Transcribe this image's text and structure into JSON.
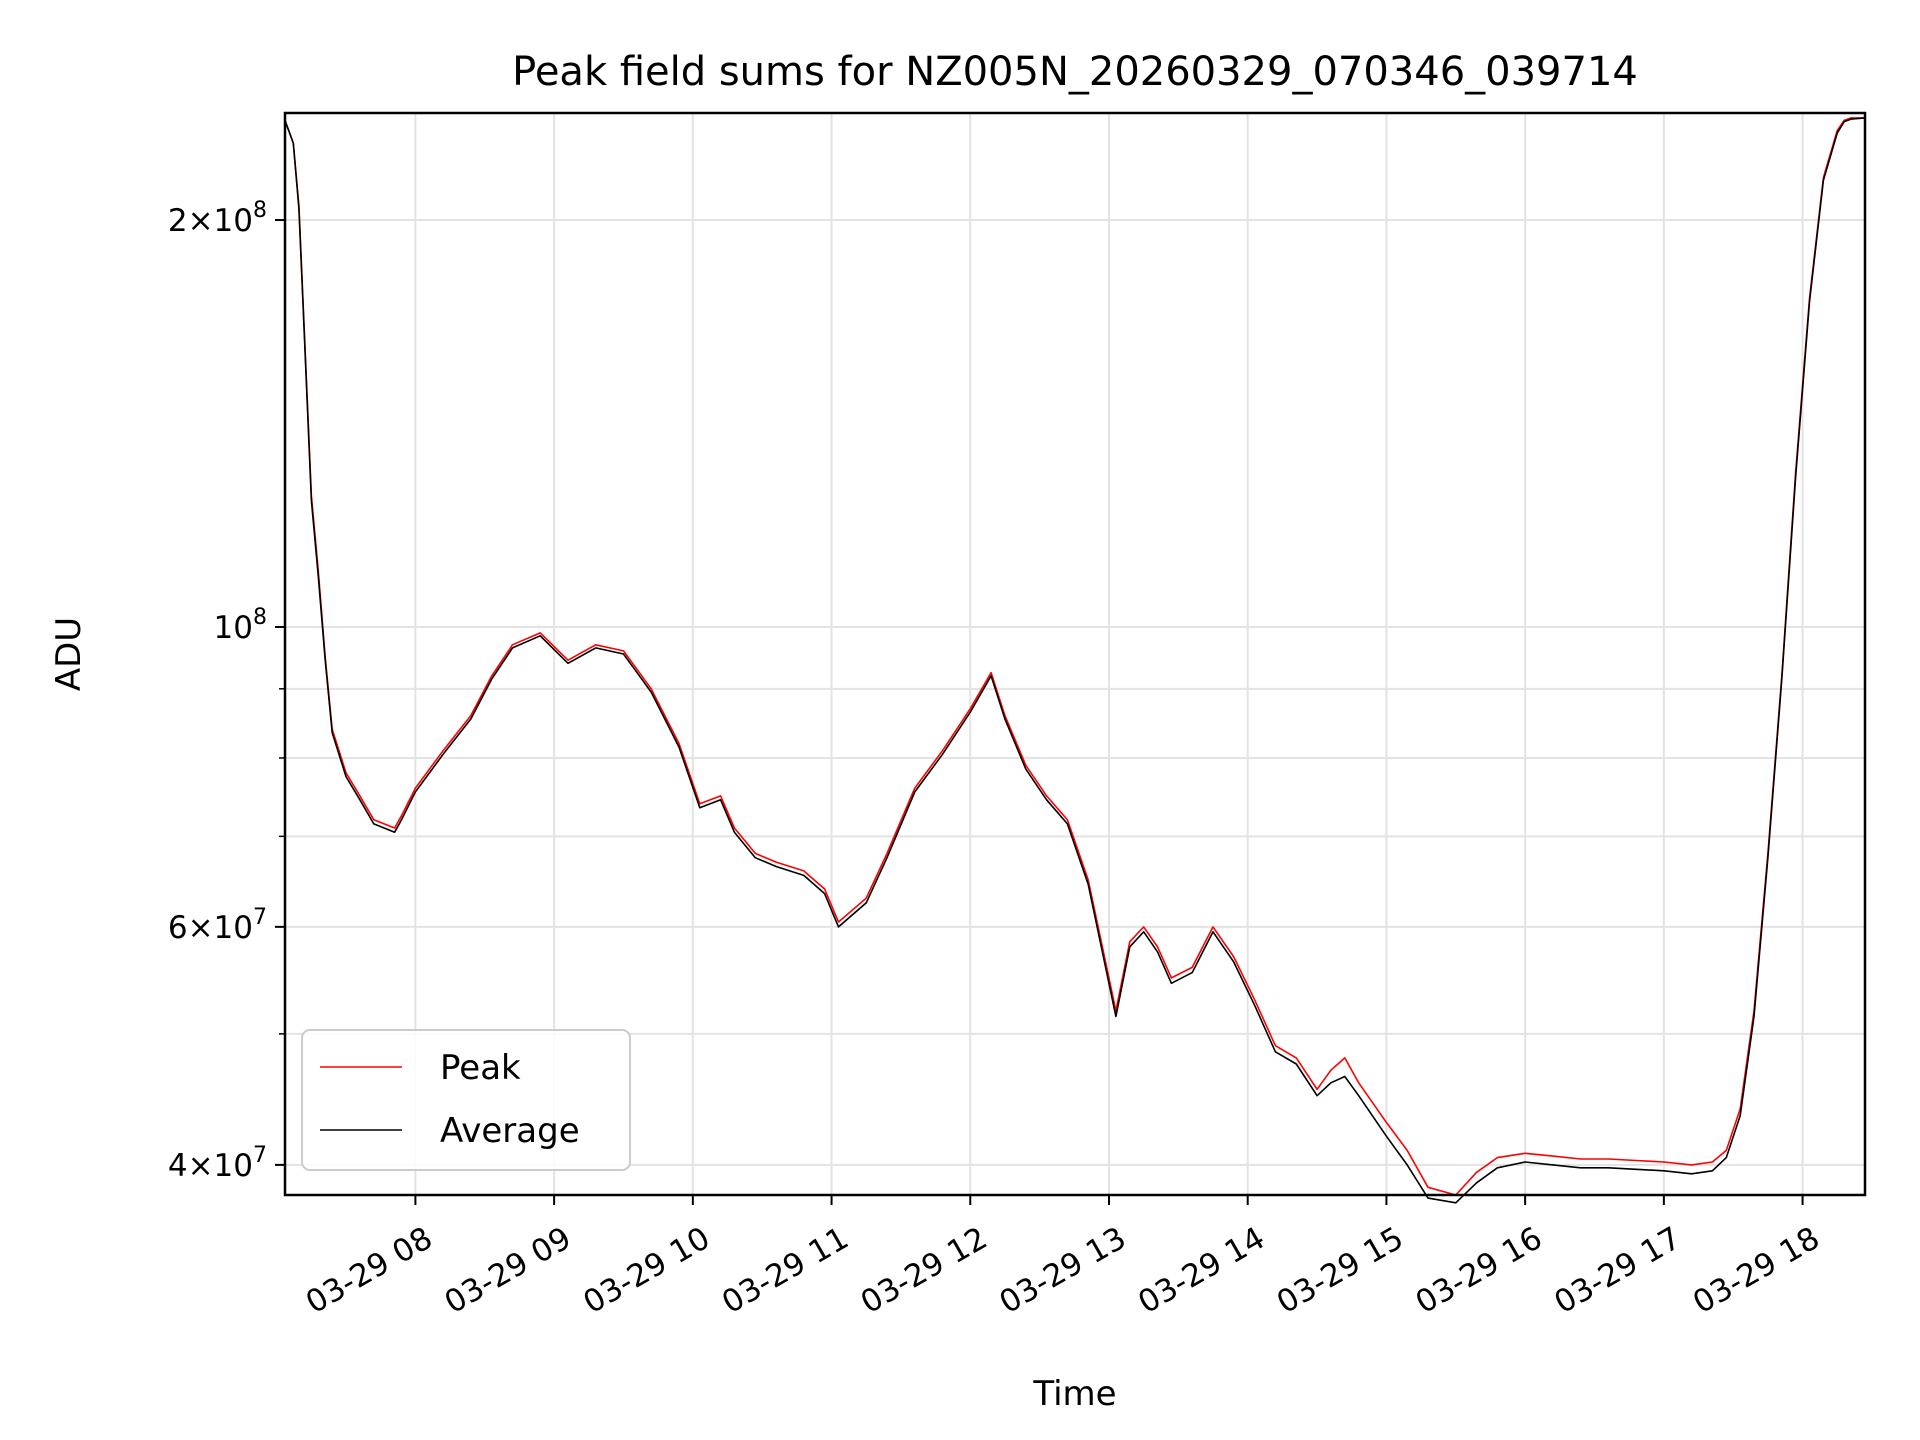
{
  "chart_data": {
    "type": "line",
    "title": "Peak field sums for NZ005N_20260329_070346_039714",
    "xlabel": "Time",
    "ylabel": "ADU",
    "y_scale": "log",
    "xlim_hours": [
      7.06,
      18.45
    ],
    "ylim": [
      38000000,
      240000000
    ],
    "grid": true,
    "legend_position": "lower-left",
    "x_ticks": [
      {
        "value": 8,
        "label": "03-29 08"
      },
      {
        "value": 9,
        "label": "03-29 09"
      },
      {
        "value": 10,
        "label": "03-29 10"
      },
      {
        "value": 11,
        "label": "03-29 11"
      },
      {
        "value": 12,
        "label": "03-29 12"
      },
      {
        "value": 13,
        "label": "03-29 13"
      },
      {
        "value": 14,
        "label": "03-29 14"
      },
      {
        "value": 15,
        "label": "03-29 15"
      },
      {
        "value": 16,
        "label": "03-29 16"
      },
      {
        "value": 17,
        "label": "03-29 17"
      },
      {
        "value": 18,
        "label": "03-29 18"
      }
    ],
    "y_ticks": [
      {
        "value": 40000000,
        "mantissa": "4",
        "exp": "7",
        "label": "4 × 10^7"
      },
      {
        "value": 60000000,
        "mantissa": "6",
        "exp": "7",
        "label": "6 × 10^7"
      },
      {
        "value": 100000000,
        "mantissa": "",
        "exp": "8",
        "label": "10^8"
      },
      {
        "value": 200000000,
        "mantissa": "2",
        "exp": "8",
        "label": "2 × 10^8"
      }
    ],
    "y_minor_ticks": [
      50000000,
      70000000,
      80000000,
      90000000
    ],
    "series": [
      {
        "name": "Peak",
        "color": "#ff0000",
        "x": [
          7.06,
          7.12,
          7.16,
          7.2,
          7.25,
          7.3,
          7.35,
          7.4,
          7.5,
          7.6,
          7.7,
          7.85,
          7.9,
          8.0,
          8.2,
          8.4,
          8.55,
          8.7,
          8.9,
          9.1,
          9.3,
          9.5,
          9.7,
          9.9,
          10.05,
          10.2,
          10.3,
          10.45,
          10.6,
          10.8,
          10.95,
          11.05,
          11.25,
          11.4,
          11.6,
          11.8,
          12.0,
          12.15,
          12.25,
          12.4,
          12.55,
          12.7,
          12.85,
          13.05,
          13.15,
          13.25,
          13.35,
          13.45,
          13.6,
          13.75,
          13.9,
          14.05,
          14.2,
          14.35,
          14.5,
          14.6,
          14.7,
          14.8,
          15.0,
          15.15,
          15.3,
          15.5,
          15.65,
          15.8,
          16.0,
          16.2,
          16.4,
          16.6,
          16.8,
          17.0,
          17.2,
          17.35,
          17.45,
          17.55,
          17.65,
          17.75,
          17.85,
          17.95,
          18.05,
          18.15,
          18.25,
          18.3,
          18.35,
          18.45
        ],
        "y": [
          237000000,
          228000000,
          205000000,
          165000000,
          125000000,
          110000000,
          95000000,
          84000000,
          78000000,
          75000000,
          72000000,
          71000000,
          72500000,
          76000000,
          81000000,
          86000000,
          92000000,
          97000000,
          99000000,
          94500000,
          97000000,
          96000000,
          90000000,
          82000000,
          74000000,
          75000000,
          71000000,
          68000000,
          67000000,
          66000000,
          64000000,
          60500000,
          63000000,
          68000000,
          76000000,
          81000000,
          87000000,
          92500000,
          86000000,
          79000000,
          75000000,
          72000000,
          65000000,
          52000000,
          58500000,
          60000000,
          58000000,
          55000000,
          56000000,
          60000000,
          57000000,
          53000000,
          49000000,
          48000000,
          45500000,
          47000000,
          48000000,
          46000000,
          43000000,
          41000000,
          38500000,
          38000000,
          39500000,
          40500000,
          40800000,
          40600000,
          40400000,
          40400000,
          40300000,
          40200000,
          40000000,
          40200000,
          41000000,
          44000000,
          52000000,
          68000000,
          92000000,
          130000000,
          175000000,
          215000000,
          233000000,
          237000000,
          238000000,
          238000000
        ]
      },
      {
        "name": "Average",
        "color": "#000000",
        "x": [
          7.06,
          7.12,
          7.16,
          7.2,
          7.25,
          7.3,
          7.35,
          7.4,
          7.5,
          7.6,
          7.7,
          7.85,
          7.9,
          8.0,
          8.2,
          8.4,
          8.55,
          8.7,
          8.9,
          9.1,
          9.3,
          9.5,
          9.7,
          9.9,
          10.05,
          10.2,
          10.3,
          10.45,
          10.6,
          10.8,
          10.95,
          11.05,
          11.25,
          11.4,
          11.6,
          11.8,
          12.0,
          12.15,
          12.25,
          12.4,
          12.55,
          12.7,
          12.85,
          13.05,
          13.15,
          13.25,
          13.35,
          13.45,
          13.6,
          13.75,
          13.9,
          14.05,
          14.2,
          14.35,
          14.5,
          14.6,
          14.7,
          14.8,
          15.0,
          15.15,
          15.3,
          15.5,
          15.65,
          15.8,
          16.0,
          16.2,
          16.4,
          16.6,
          16.8,
          17.0,
          17.2,
          17.35,
          17.45,
          17.55,
          17.65,
          17.75,
          17.85,
          17.95,
          18.05,
          18.15,
          18.25,
          18.3,
          18.35,
          18.45
        ],
        "y": [
          237000000,
          228000000,
          204000000,
          164000000,
          124000000,
          109000000,
          94500000,
          83500000,
          77500000,
          74500000,
          71500000,
          70500000,
          72000000,
          75500000,
          80500000,
          85500000,
          91500000,
          96500000,
          98500000,
          94000000,
          96500000,
          95500000,
          89500000,
          81500000,
          73500000,
          74500000,
          70500000,
          67500000,
          66500000,
          65500000,
          63500000,
          60000000,
          62500000,
          67500000,
          75500000,
          80500000,
          86500000,
          92000000,
          85500000,
          78500000,
          74500000,
          71500000,
          64500000,
          51500000,
          58000000,
          59500000,
          57500000,
          54500000,
          55500000,
          59500000,
          56500000,
          52500000,
          48500000,
          47500000,
          45000000,
          46000000,
          46500000,
          45000000,
          42000000,
          40000000,
          37800000,
          37500000,
          38800000,
          39800000,
          40200000,
          40000000,
          39800000,
          39800000,
          39700000,
          39600000,
          39400000,
          39600000,
          40500000,
          43500000,
          51500000,
          67500000,
          91500000,
          129000000,
          174000000,
          214000000,
          232000000,
          236500000,
          237500000,
          238000000
        ]
      }
    ]
  }
}
